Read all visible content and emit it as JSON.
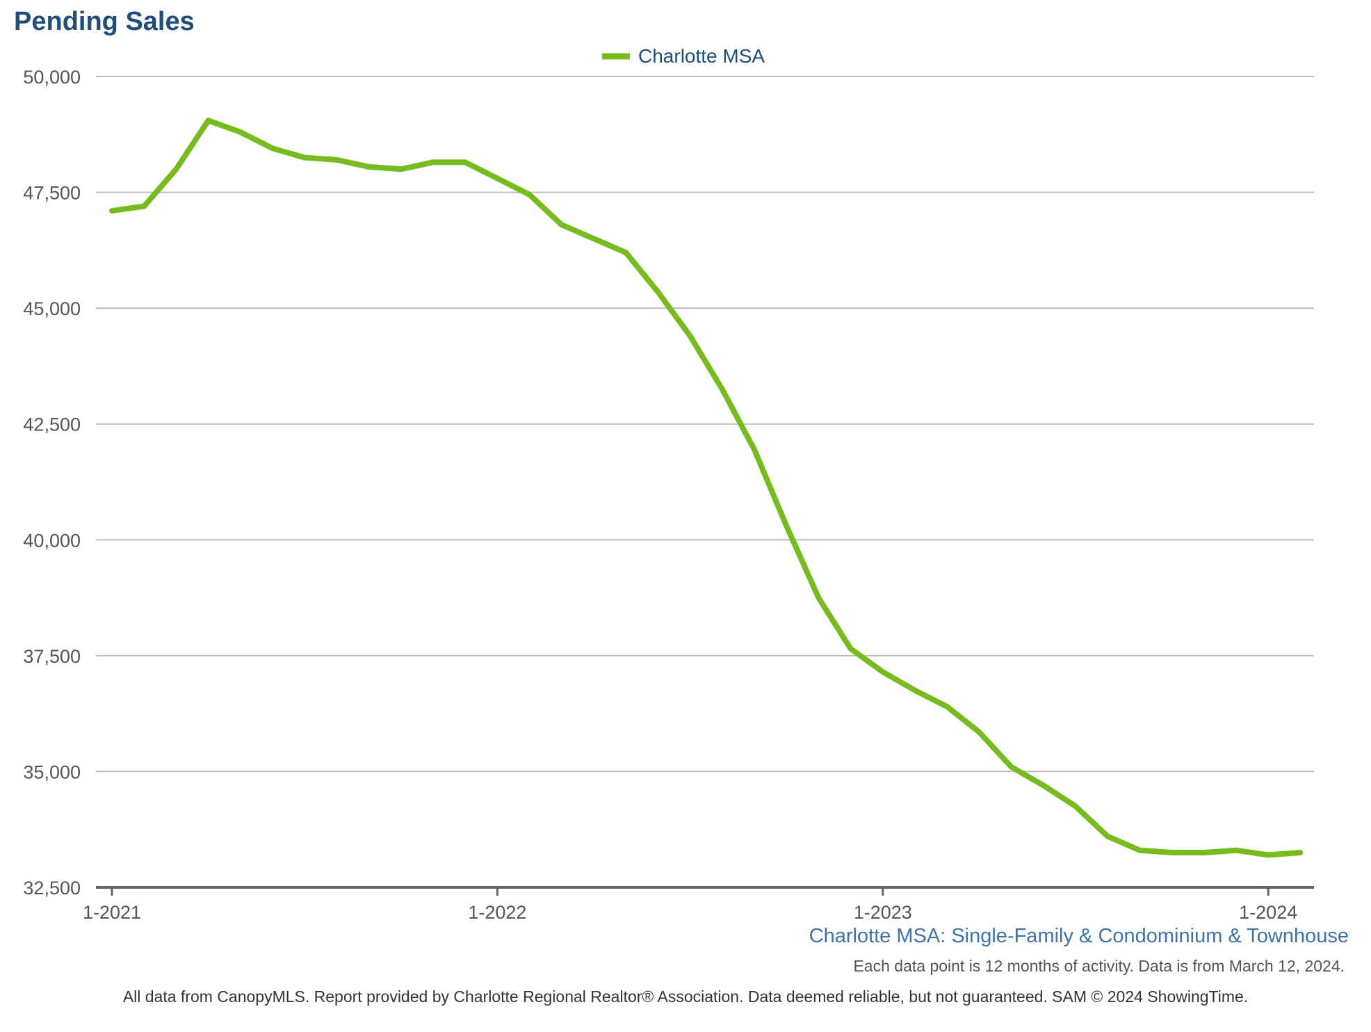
{
  "chart_data": {
    "type": "line",
    "title": "Pending Sales",
    "subtitle": "Charlotte MSA: Single-Family & Condominium & Townhouse",
    "note": "Each data point is 12 months of activity. Data is from March 12, 2024.",
    "footer": "All data from CanopyMLS. Report provided by Charlotte Regional Realtor® Association. Data deemed reliable, but not guaranteed. SAM © 2024 ShowingTime.",
    "ylim": [
      32500,
      50000
    ],
    "y_ticks": [
      50000,
      47500,
      45000,
      42500,
      40000,
      37500,
      35000,
      32500
    ],
    "y_tick_labels": [
      "50,000",
      "47,500",
      "45,000",
      "42,500",
      "40,000",
      "37,500",
      "35,000",
      "32,500"
    ],
    "x_tick_labels": [
      "1-2021",
      "1-2022",
      "1-2023",
      "1-2024"
    ],
    "grid": true,
    "legend_position": "top-center",
    "x": [
      "1-2021",
      "2-2021",
      "3-2021",
      "4-2021",
      "5-2021",
      "6-2021",
      "7-2021",
      "8-2021",
      "9-2021",
      "10-2021",
      "11-2021",
      "12-2021",
      "1-2022",
      "2-2022",
      "3-2022",
      "4-2022",
      "5-2022",
      "6-2022",
      "7-2022",
      "8-2022",
      "9-2022",
      "10-2022",
      "11-2022",
      "12-2022",
      "1-2023",
      "2-2023",
      "3-2023",
      "4-2023",
      "5-2023",
      "6-2023",
      "7-2023",
      "8-2023",
      "9-2023",
      "10-2023",
      "11-2023",
      "12-2023",
      "1-2024",
      "2-2024"
    ],
    "series": [
      {
        "name": "Charlotte MSA",
        "color": "#77bc1f",
        "values": [
          47100,
          47200,
          48000,
          49050,
          48800,
          48450,
          48250,
          48200,
          48050,
          48000,
          48150,
          48150,
          47800,
          47450,
          46800,
          46500,
          46200,
          45350,
          44400,
          43250,
          41950,
          40300,
          38750,
          37650,
          37150,
          36750,
          36400,
          35850,
          35100,
          34700,
          34250,
          33600,
          33300,
          33250,
          33250,
          33300,
          33200,
          33250
        ]
      }
    ]
  }
}
